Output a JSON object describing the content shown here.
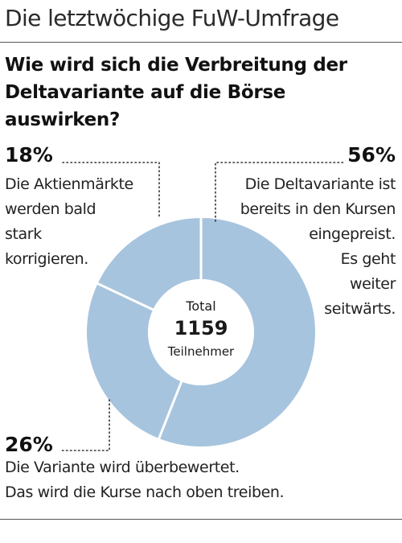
{
  "header": {
    "title": "Die letztwöchige FuW-Umfrage"
  },
  "question": "Wie wird sich die Verbreitung der Deltavariante auf die Börse auswirken?",
  "center": {
    "label_top": "Total",
    "total": "1159",
    "label_bottom": "Teilnehmer"
  },
  "colors": {
    "slice": "#a7c4de",
    "separator": "#ffffff",
    "dots": "#333333",
    "rule": "#555555"
  },
  "chart_data": {
    "type": "pie",
    "donut": true,
    "total": 1159,
    "categories": [
      "Die Deltavariante ist bereits in den Kursen eingepreist. Es geht weiter seitwärts.",
      "Die Variante wird überbewertet. Das wird die Kurse nach oben treiben.",
      "Die Aktienmärkte werden bald stark korrigieren."
    ],
    "values": [
      56,
      26,
      18
    ],
    "value_labels": [
      "56%",
      "26%",
      "18%"
    ],
    "unit": "%"
  },
  "answers": {
    "a56": {
      "pct": "56%",
      "lines": [
        "Die Deltavariante ist",
        "bereits in den Kursen",
        "eingepreist.",
        "Es geht",
        "weiter",
        "seitwärts."
      ]
    },
    "a18": {
      "pct": "18%",
      "lines": [
        "Die Aktienmärkte",
        "werden bald",
        "stark",
        "korrigieren."
      ]
    },
    "a26": {
      "pct": "26%",
      "lines": [
        "Die Variante wird überbewertet.",
        "Das wird die Kurse nach oben treiben."
      ]
    }
  }
}
